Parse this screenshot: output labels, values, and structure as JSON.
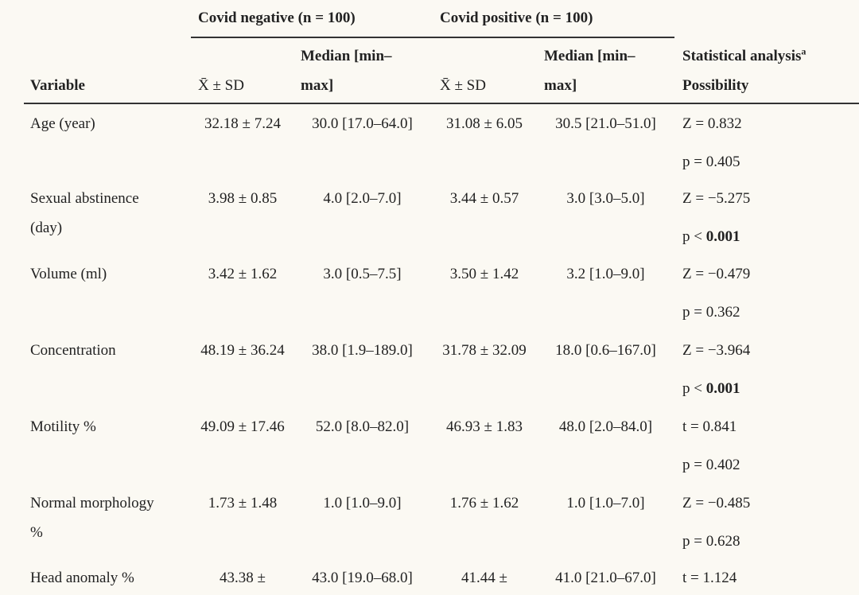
{
  "table": {
    "header": {
      "groups": [
        "Covid negative (n = 100)",
        "Covid positive (n = 100)"
      ],
      "variable": "Variable",
      "columns": [
        "X̄ ± SD",
        "Median [min–max]",
        "X̄ ± SD",
        "Median [min–max]"
      ],
      "stat": "Statistical analysis",
      "stat_note": "a",
      "possibility": "Possibility"
    },
    "rows": [
      {
        "variable": "Age (year)",
        "cells": [
          "32.18 ± 7.24",
          "30.0 [17.0–64.0]",
          "31.08 ± 6.05",
          "30.5 [21.0–51.0]"
        ],
        "stat": "Z = 0.832",
        "p": [
          "p =",
          "0.405"
        ],
        "p_bold": false
      },
      {
        "variable": "Sexual abstinence (day)",
        "cells": [
          "3.98 ± 0.85",
          "4.0 [2.0–7.0]",
          "3.44 ± 0.57",
          "3.0 [3.0–5.0]"
        ],
        "stat": "Z = −5.275",
        "p": [
          "p <",
          "0.001"
        ],
        "p_bold": true
      },
      {
        "variable": "Volume (ml)",
        "cells": [
          "3.42 ± 1.62",
          "3.0 [0.5–7.5]",
          "3.50 ± 1.42",
          "3.2 [1.0–9.0]"
        ],
        "stat": "Z = −0.479",
        "p": [
          "p =",
          "0.362"
        ],
        "p_bold": false
      },
      {
        "variable": "Concentration",
        "cells": [
          "48.19 ± 36.24",
          "38.0 [1.9–189.0]",
          "31.78 ± 32.09",
          "18.0 [0.6–167.0]"
        ],
        "stat": "Z = −3.964",
        "p": [
          "p <",
          "0.001"
        ],
        "p_bold": true
      },
      {
        "variable": "Motility %",
        "cells": [
          "49.09 ± 17.46",
          "52.0 [8.0–82.0]",
          "46.93 ± 1.83",
          "48.0 [2.0–84.0]"
        ],
        "stat": "t = 0.841",
        "p": [
          "p =",
          "0.402"
        ],
        "p_bold": false
      },
      {
        "variable": "Normal morphology %",
        "cells": [
          "1.73 ± 1.48",
          "1.0 [1.0–9.0]",
          "1.76 ± 1.62",
          "1.0 [1.0–7.0]"
        ],
        "stat": "Z = −0.485",
        "p": [
          "p =",
          "0.628"
        ],
        "p_bold": false
      },
      {
        "variable": "Head anomaly %",
        "cells": [
          "43.38 ±",
          "43.0 [19.0–68.0]",
          "41.44 ±",
          "41.0 [21.0–67.0]"
        ],
        "stat": "t = 1.124"
      }
    ]
  }
}
